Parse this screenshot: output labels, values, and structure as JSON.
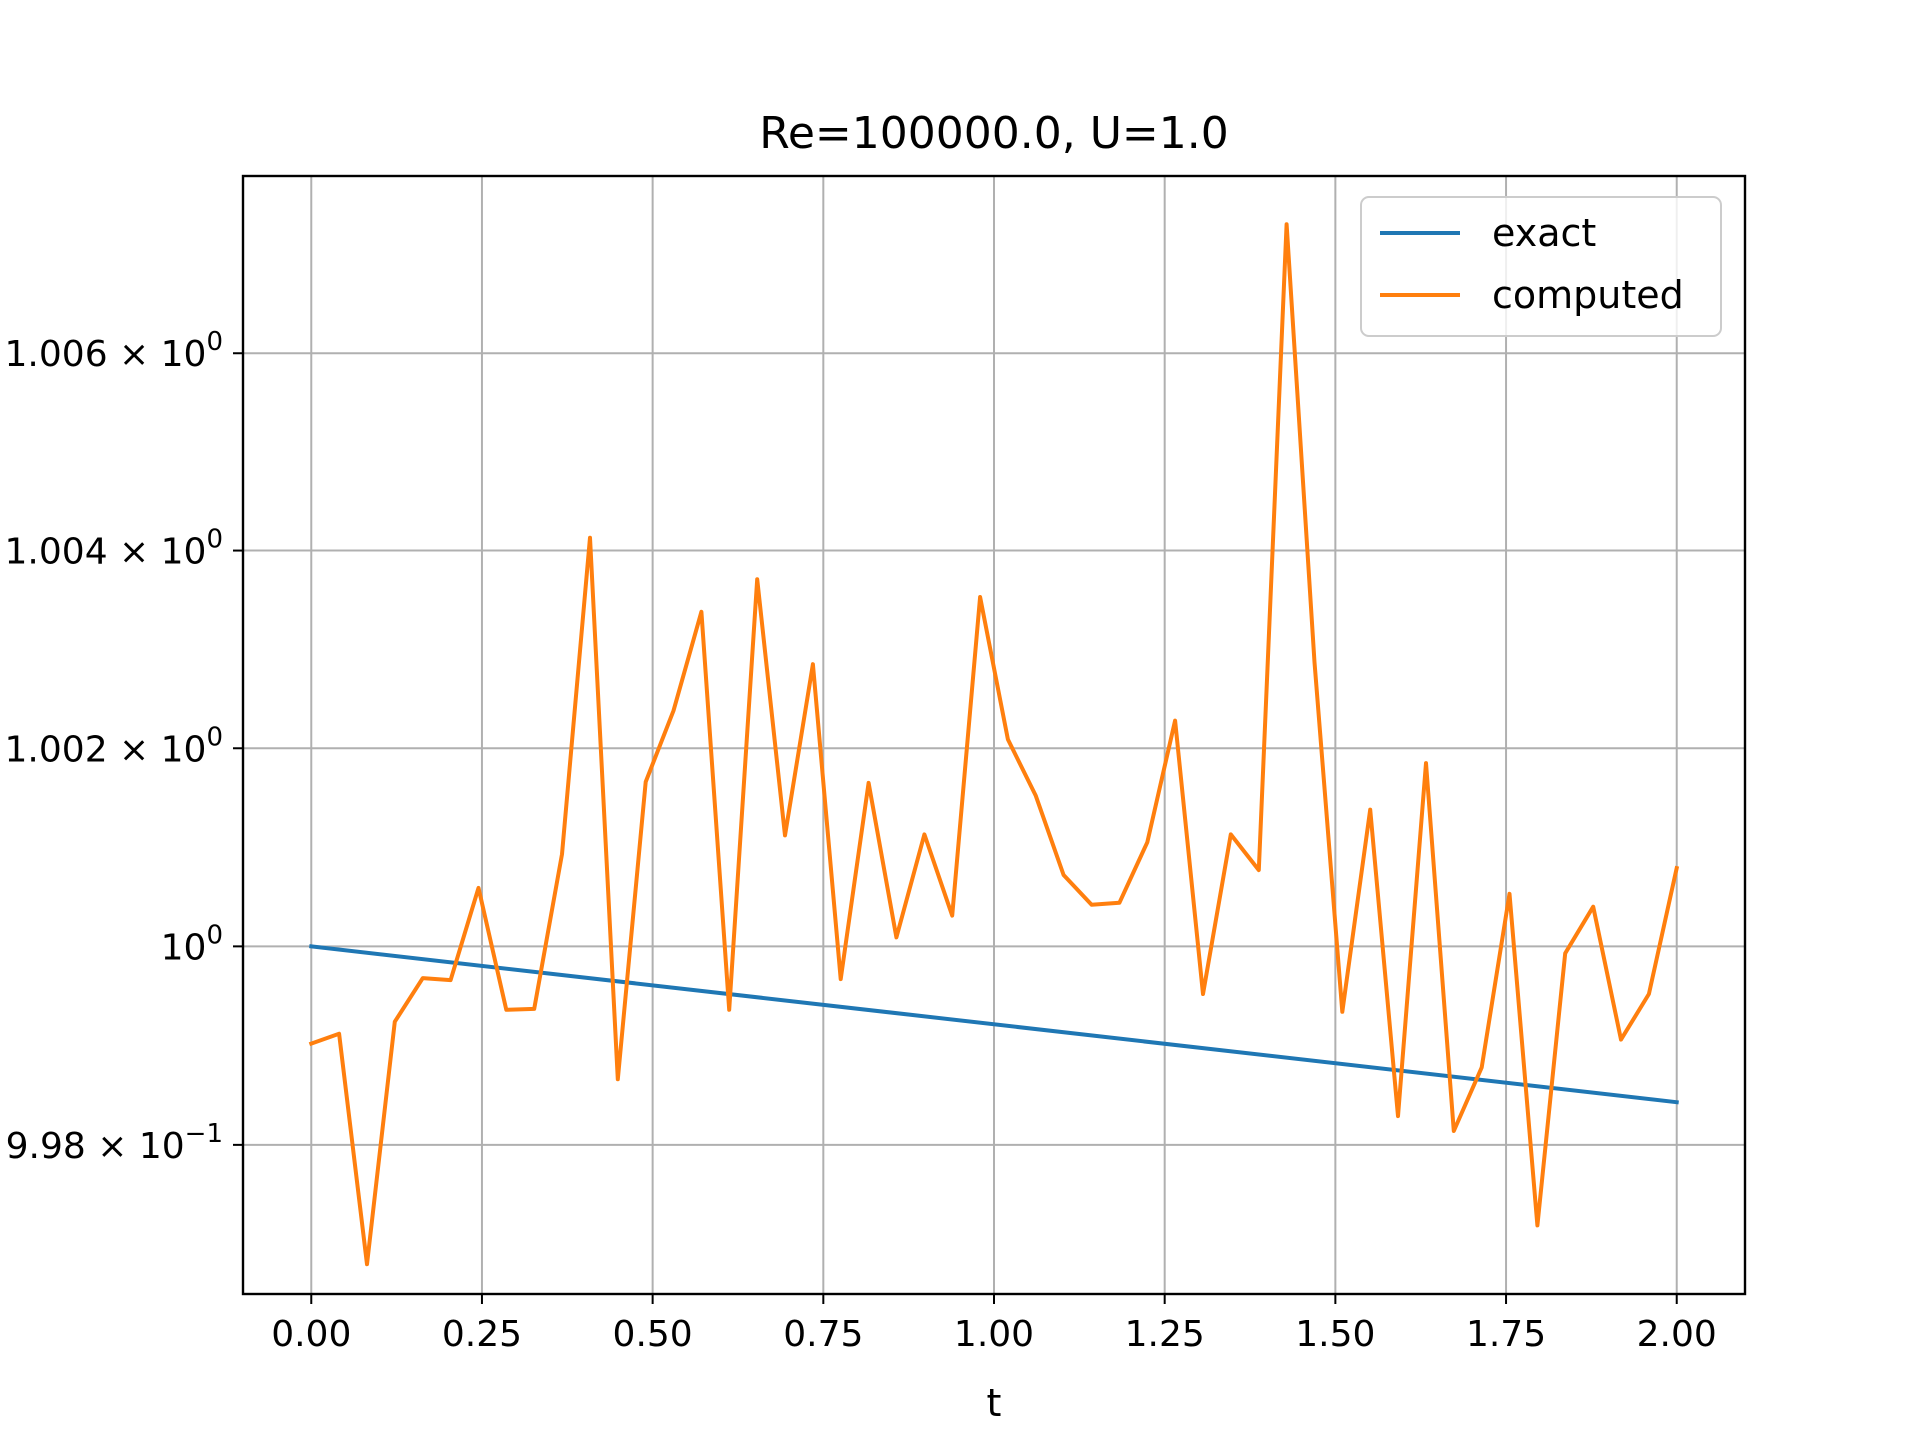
{
  "chart_data": {
    "type": "line",
    "title": "Re=100000.0, U=1.0",
    "xlabel": "t",
    "ylabel": "",
    "xlim": [
      -0.1,
      2.1
    ],
    "ylim": [
      0.9965,
      1.0078
    ],
    "y_scale": "log",
    "grid": true,
    "legend_position": "upper right",
    "x_ticks": [
      {
        "value": 0.0,
        "label": "0.00"
      },
      {
        "value": 0.25,
        "label": "0.25"
      },
      {
        "value": 0.5,
        "label": "0.50"
      },
      {
        "value": 0.75,
        "label": "0.75"
      },
      {
        "value": 1.0,
        "label": "1.00"
      },
      {
        "value": 1.25,
        "label": "1.25"
      },
      {
        "value": 1.5,
        "label": "1.50"
      },
      {
        "value": 1.75,
        "label": "1.75"
      },
      {
        "value": 2.0,
        "label": "2.00"
      }
    ],
    "y_ticks": [
      {
        "value": 0.998,
        "mantissa": "9.98",
        "exponent": "−1"
      },
      {
        "value": 1.0,
        "mantissa": "",
        "exponent": "0"
      },
      {
        "value": 1.002,
        "mantissa": "1.002",
        "exponent": "0"
      },
      {
        "value": 1.004,
        "mantissa": "1.004",
        "exponent": "0"
      },
      {
        "value": 1.006,
        "mantissa": "1.006",
        "exponent": "0"
      }
    ],
    "series": [
      {
        "name": "exact",
        "color": "#1f77b4",
        "x": [
          0.0,
          2.0
        ],
        "y": [
          1.0,
          0.99843
        ]
      },
      {
        "name": "computed",
        "color": "#ff7f0e",
        "x": [
          0.0,
          0.0408,
          0.0816,
          0.1224,
          0.1633,
          0.2041,
          0.2449,
          0.2857,
          0.3265,
          0.3673,
          0.4082,
          0.449,
          0.4898,
          0.5306,
          0.5714,
          0.6122,
          0.6531,
          0.6939,
          0.7347,
          0.7755,
          0.8163,
          0.8571,
          0.898,
          0.9388,
          0.9796,
          1.0204,
          1.0612,
          1.102,
          1.1429,
          1.1837,
          1.2245,
          1.2653,
          1.3061,
          1.3469,
          1.3878,
          1.4286,
          1.4694,
          1.5102,
          1.551,
          1.5918,
          1.6327,
          1.6735,
          1.7143,
          1.7551,
          1.7959,
          1.8367,
          1.8776,
          1.9184,
          1.9592,
          2.0
        ],
        "y": [
          0.99902,
          0.99912,
          0.9968,
          0.99924,
          0.99968,
          0.99966,
          1.00059,
          0.99936,
          0.99937,
          1.00093,
          1.00413,
          0.99866,
          1.00166,
          1.00238,
          1.00338,
          0.99936,
          1.00371,
          1.00112,
          1.00285,
          0.99967,
          1.00165,
          1.00009,
          1.00113,
          1.00031,
          1.00353,
          1.00209,
          1.00152,
          1.00072,
          1.00042,
          1.00044,
          1.00105,
          1.00228,
          0.99952,
          1.00113,
          1.00077,
          1.00731,
          1.00287,
          0.99934,
          1.00138,
          0.99829,
          1.00185,
          0.99814,
          0.99878,
          1.00053,
          0.99719,
          0.99993,
          1.0004,
          0.99906,
          0.99952,
          1.00079
        ]
      }
    ]
  }
}
